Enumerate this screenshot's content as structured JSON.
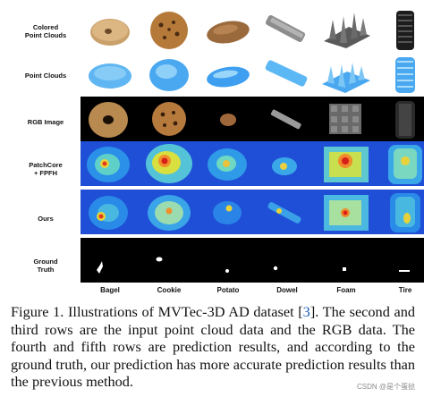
{
  "figure": {
    "row_labels": [
      [
        "Colored",
        "Point Clouds"
      ],
      [
        "Point Clouds"
      ],
      [
        "RGB Image"
      ],
      [
        "PatchCore",
        "+ FPFH"
      ],
      [
        "Ours"
      ],
      [
        "Ground",
        "Truth"
      ]
    ],
    "columns": [
      "Bagel",
      "Cookie",
      "Potato",
      "Dowel",
      "Foam",
      "Tire"
    ]
  },
  "caption": {
    "lead": "Figure 1. Illustrations of MVTec-3D AD dataset [",
    "ref": "3",
    "rest": "]. The second and third rows are the input point cloud data and the RGB data. The fourth and fifth rows are prediction results, and according to the ground truth, our prediction has more accurate prediction results than the previous method."
  },
  "watermark": "CSDN @是个蛋挞",
  "colors": {
    "blue_bg": "#1f4fd6",
    "point_cloud": "#4aa8f0",
    "black": "#000000"
  }
}
